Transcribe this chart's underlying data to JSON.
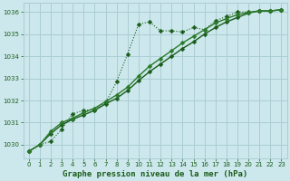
{
  "title": "Graphe pression niveau de la mer (hPa)",
  "background_color": "#cce8ec",
  "grid_color": "#aacdd4",
  "line_color_dark": "#1a5c1a",
  "line_color_med": "#2a7a2a",
  "xlim": [
    -0.5,
    23.5
  ],
  "ylim": [
    1029.4,
    1036.4
  ],
  "yticks": [
    1030,
    1031,
    1032,
    1033,
    1034,
    1035,
    1036
  ],
  "xticks": [
    0,
    1,
    2,
    3,
    4,
    5,
    6,
    7,
    8,
    9,
    10,
    11,
    12,
    13,
    14,
    15,
    16,
    17,
    18,
    19,
    20,
    21,
    22,
    23
  ],
  "series1_x": [
    0,
    1,
    2,
    3,
    4,
    5,
    6,
    7,
    8,
    9,
    10,
    11,
    12,
    13,
    14,
    15,
    16,
    17,
    18,
    19,
    20,
    21,
    22,
    23
  ],
  "series1_y": [
    1029.7,
    1030.0,
    1030.15,
    1030.7,
    1031.4,
    1031.55,
    1031.6,
    1031.9,
    1032.85,
    1034.1,
    1035.45,
    1035.55,
    1035.15,
    1035.15,
    1035.1,
    1035.3,
    1035.2,
    1035.6,
    1035.8,
    1036.0,
    1036.0,
    1036.05,
    1036.05,
    1036.1
  ],
  "series2_x": [
    0,
    1,
    2,
    3,
    4,
    5,
    6,
    7,
    8,
    9,
    10,
    11,
    12,
    13,
    14,
    15,
    16,
    17,
    18,
    19,
    20,
    21,
    22,
    23
  ],
  "series2_y": [
    1029.7,
    1030.0,
    1030.5,
    1030.9,
    1031.15,
    1031.35,
    1031.55,
    1031.85,
    1032.1,
    1032.45,
    1032.9,
    1033.3,
    1033.65,
    1034.0,
    1034.35,
    1034.65,
    1035.0,
    1035.3,
    1035.55,
    1035.75,
    1035.95,
    1036.05,
    1036.05,
    1036.1
  ],
  "series3_x": [
    0,
    1,
    2,
    3,
    4,
    5,
    6,
    7,
    8,
    9,
    10,
    11,
    12,
    13,
    14,
    15,
    16,
    17,
    18,
    19,
    20,
    21,
    22,
    23
  ],
  "series3_y": [
    1029.7,
    1030.0,
    1030.6,
    1031.0,
    1031.2,
    1031.45,
    1031.65,
    1031.95,
    1032.25,
    1032.6,
    1033.1,
    1033.55,
    1033.9,
    1034.25,
    1034.6,
    1034.9,
    1035.2,
    1035.5,
    1035.7,
    1035.88,
    1035.98,
    1036.05,
    1036.05,
    1036.1
  ]
}
